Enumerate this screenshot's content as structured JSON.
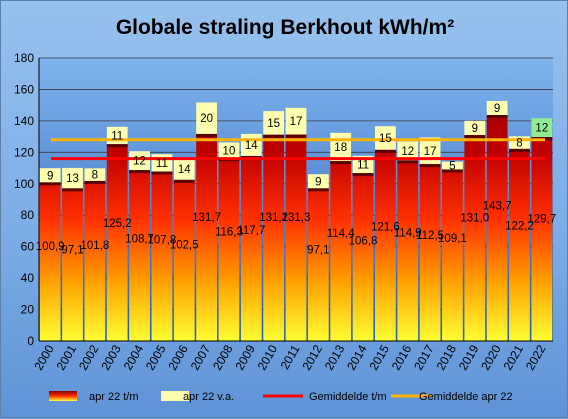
{
  "chart_data": {
    "type": "bar",
    "title": "Globale straling Berkhout kWh/m²",
    "categories": [
      "2000",
      "2001",
      "2002",
      "2003",
      "2004",
      "2005",
      "2006",
      "2007",
      "2008",
      "2009",
      "2010",
      "2011",
      "2012",
      "2013",
      "2014",
      "2015",
      "2016",
      "2017",
      "2018",
      "2019",
      "2020",
      "2021",
      "2022"
    ],
    "series": [
      {
        "name": "apr 22 t/m",
        "values": [
          100.9,
          97.1,
          101.8,
          125.2,
          108.7,
          107.8,
          102.5,
          131.7,
          116.3,
          117.7,
          131.2,
          131.3,
          97.1,
          114.4,
          106.8,
          121.6,
          114.9,
          112.5,
          109.1,
          131.0,
          143.7,
          122.2,
          129.7
        ],
        "labels": [
          "100,9",
          "97,1",
          "101,8",
          "125,2",
          "108,7",
          "107,8",
          "102,5",
          "131,7",
          "116,3",
          "117,7",
          "131,2",
          "131,3",
          "97,1",
          "114,4",
          "106,8",
          "121,6",
          "114,9",
          "112,5",
          "109,1",
          "131,0",
          "143,7",
          "122,2",
          "129,7"
        ]
      },
      {
        "name": "apr 22 v.a.",
        "values": [
          9,
          13,
          8,
          11,
          12,
          11,
          14,
          20,
          10,
          14,
          15,
          17,
          9,
          18,
          11,
          15,
          12,
          17,
          5,
          9,
          9,
          8,
          12
        ],
        "labels": [
          "9",
          "13",
          "8",
          "11",
          "12",
          "11",
          "14",
          "20",
          "10",
          "14",
          "15",
          "17",
          "9",
          "18",
          "11",
          "15",
          "12",
          "17",
          "5",
          "9",
          "9",
          "8",
          "12"
        ]
      },
      {
        "name": "Gemiddelde t/m",
        "value": 116
      },
      {
        "name": "Gemiddelde apr 22",
        "value": 128
      }
    ],
    "ylim": [
      0,
      180
    ],
    "yticks": [
      0,
      20,
      40,
      60,
      80,
      100,
      120,
      140,
      160,
      180
    ],
    "grid": true,
    "legend": "bottom",
    "colors": {
      "bar_top": "#8b0000",
      "bar_mid": "#ff2000",
      "bar_bottom": "#ffff33",
      "extra": "#ffffb0",
      "extra_last": "#90ee90",
      "avg_tm": "#ff0000",
      "avg_apr": "#ffb300",
      "plot_top": "#7fb4ee",
      "plot_bottom": "#2a5db5"
    }
  }
}
